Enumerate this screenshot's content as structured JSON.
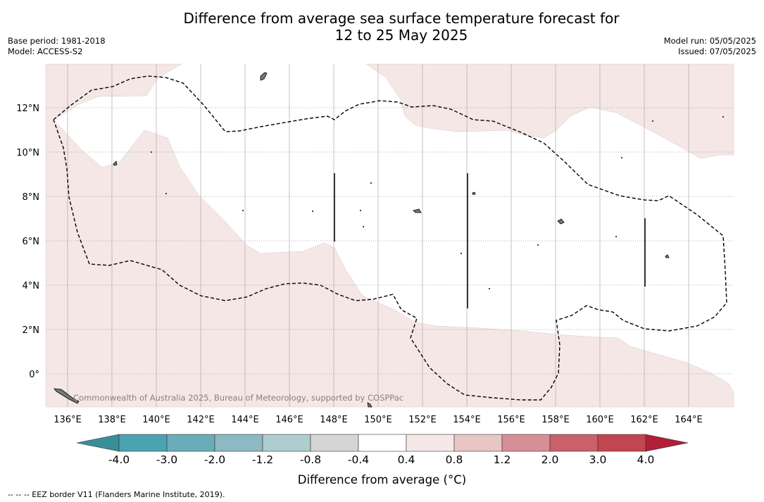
{
  "title_line1": "Difference from average sea surface temperature forecast for",
  "title_line2": "12 to 25 May 2025",
  "base_period": "Base period: 1981-2018",
  "model": "Model: ACCESS-S2",
  "model_run": "Model run: 05/05/2025",
  "issued": "Issued: 07/05/2025",
  "credit": "Commonwealth of Australia 2025, Bureau of Meteorology, supported by COSPPac",
  "colorbar_label": "Difference from average (°C)",
  "footnote": "--  --  -- EEZ border V11 (Flanders Marine Institute, 2019).",
  "map": {
    "lon_range": [
      135,
      166
    ],
    "lat_range": [
      -1.5,
      14
    ],
    "lon_ticks": [
      "136°E",
      "138°E",
      "140°E",
      "142°E",
      "144°E",
      "146°E",
      "148°E",
      "150°E",
      "152°E",
      "154°E",
      "156°E",
      "158°E",
      "160°E",
      "162°E",
      "164°E"
    ],
    "lat_ticks": [
      "12°N",
      "10°N",
      "8°N",
      "6°N",
      "4°N",
      "2°N",
      "0°"
    ],
    "anomaly_fill_color": "#f4e7e6",
    "anomaly_fill_category": "0.4 to 0.8"
  },
  "colorbar": {
    "ticks": [
      "-4.0",
      "-3.0",
      "-2.0",
      "-1.2",
      "-0.8",
      "-0.4",
      "0.4",
      "0.8",
      "1.2",
      "2.0",
      "3.0",
      "4.0"
    ],
    "colors": [
      "#3a8e98",
      "#4ba3b2",
      "#6aacba",
      "#8db9c2",
      "#aecdce",
      "#d5d5d5",
      "#ffffff",
      "#f5e9e8",
      "#e8c6c3",
      "#d68f96",
      "#c9606b",
      "#c0474f",
      "#b11e3a"
    ]
  }
}
